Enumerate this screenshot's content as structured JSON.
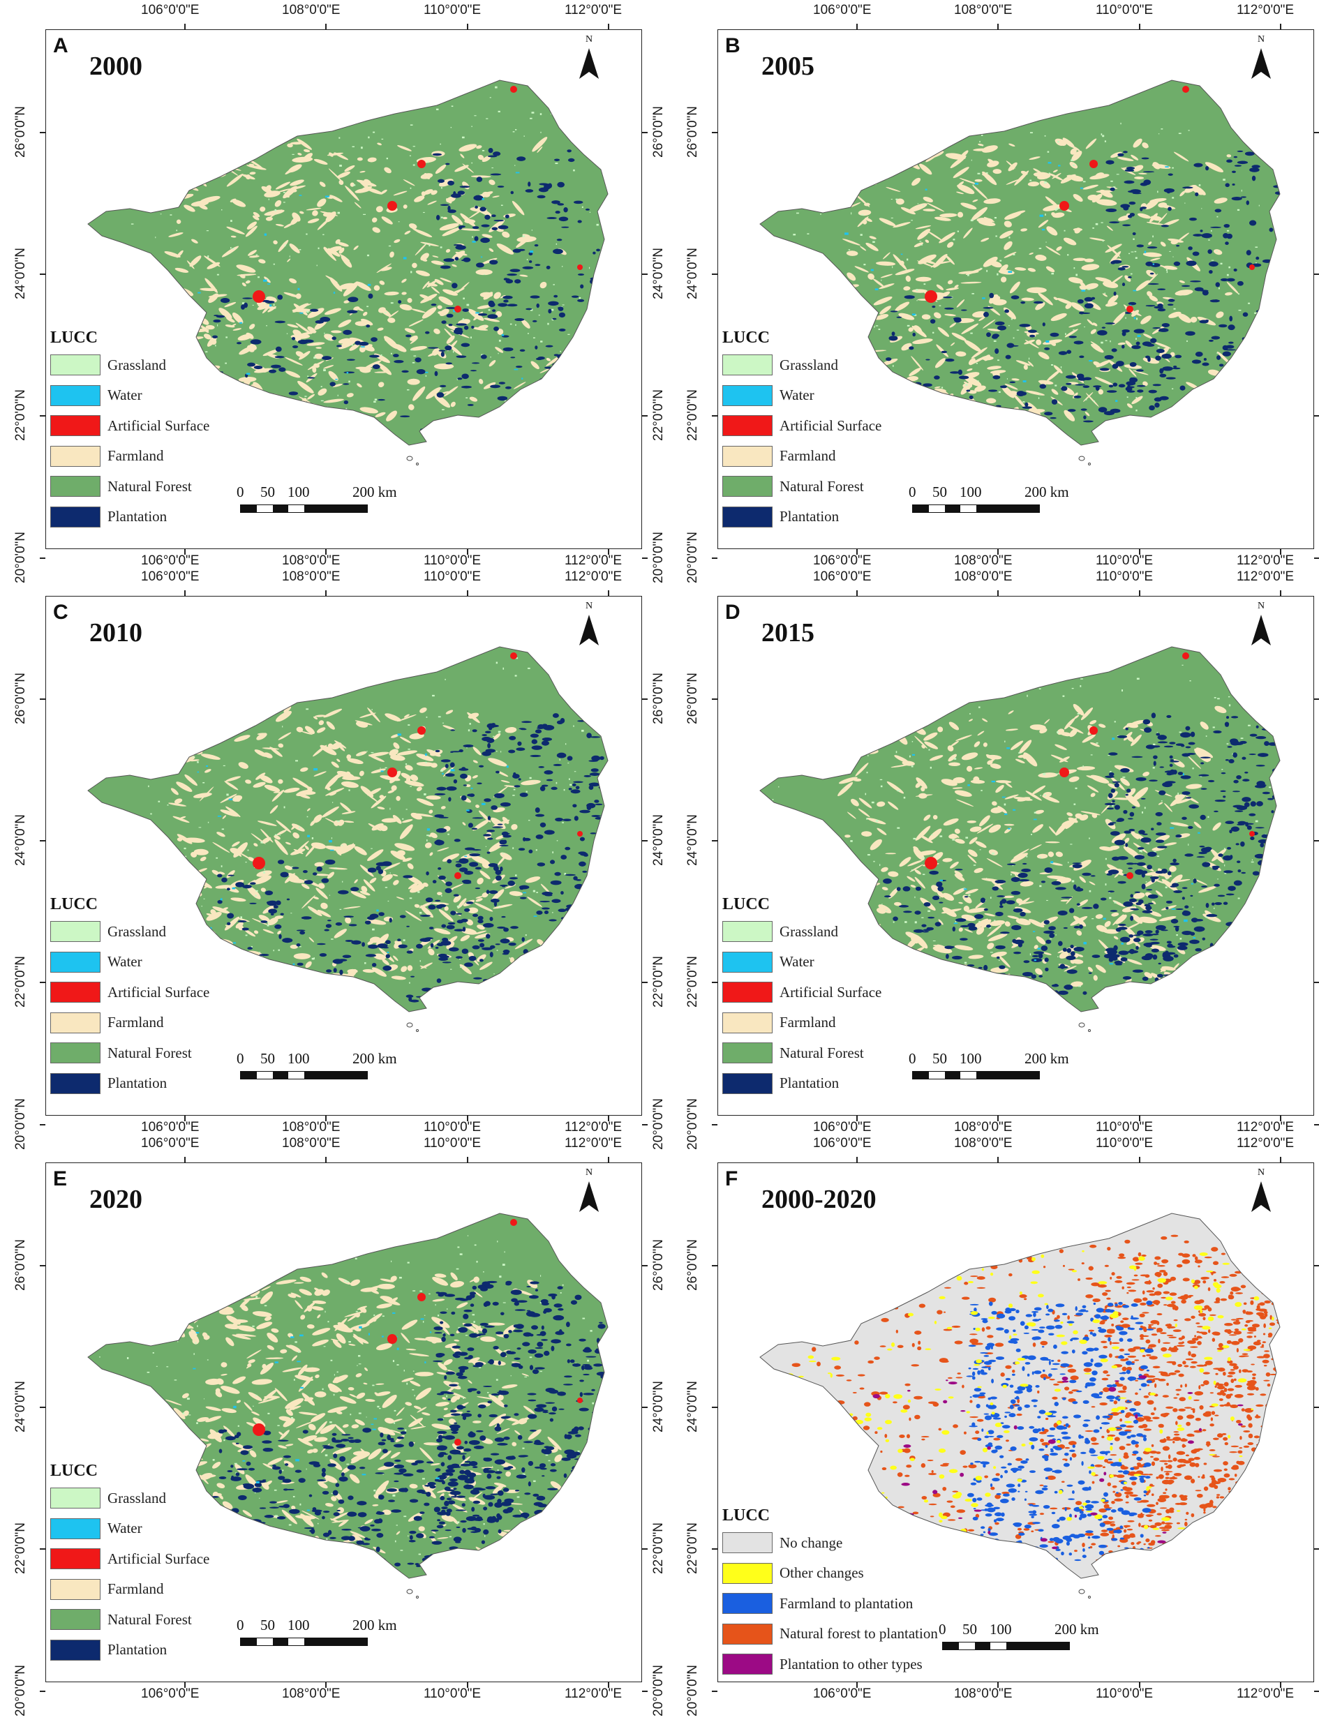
{
  "lon_labels": [
    "106°0'0\"E",
    "108°0'0\"E",
    "110°0'0\"E",
    "112°0'0\"E"
  ],
  "lat_labels": [
    "26°0'0\"N",
    "24°0'0\"N",
    "22°0'0\"N",
    "20°0'0\"N"
  ],
  "north_label": "N",
  "legend_title": "LUCC",
  "scale_labels": [
    "0",
    "50",
    "100",
    "200 km"
  ],
  "lucc_classes": [
    {
      "label": "Grassland",
      "color": "#ccf7c5"
    },
    {
      "label": "Water",
      "color": "#1ec3f0"
    },
    {
      "label": "Artificial Surface",
      "color": "#f01818"
    },
    {
      "label": "Farmland",
      "color": "#f9e7c0"
    },
    {
      "label": "Natural Forest",
      "color": "#6fad6a"
    },
    {
      "label": "Plantation",
      "color": "#0d2a6e"
    }
  ],
  "change_classes": [
    {
      "label": "No change",
      "color": "#e3e3e3"
    },
    {
      "label": "Other changes",
      "color": "#ffff1a"
    },
    {
      "label": "Farmland to plantation",
      "color": "#1a5fe0"
    },
    {
      "label": "Natural forest to plantation",
      "color": "#e6541a"
    },
    {
      "label": "Plantation to other types",
      "color": "#9c0a85"
    }
  ],
  "panels": [
    {
      "letter": "A",
      "title": "2000",
      "kind": "lucc",
      "plantation_share": 0.1
    },
    {
      "letter": "B",
      "title": "2005",
      "kind": "lucc",
      "plantation_share": 0.13
    },
    {
      "letter": "C",
      "title": "2010",
      "kind": "lucc",
      "plantation_share": 0.17
    },
    {
      "letter": "D",
      "title": "2015",
      "kind": "lucc",
      "plantation_share": 0.21
    },
    {
      "letter": "E",
      "title": "2020",
      "kind": "lucc",
      "plantation_share": 0.26
    },
    {
      "letter": "F",
      "title": "2000-2020",
      "kind": "change",
      "plantation_share": 0
    }
  ]
}
